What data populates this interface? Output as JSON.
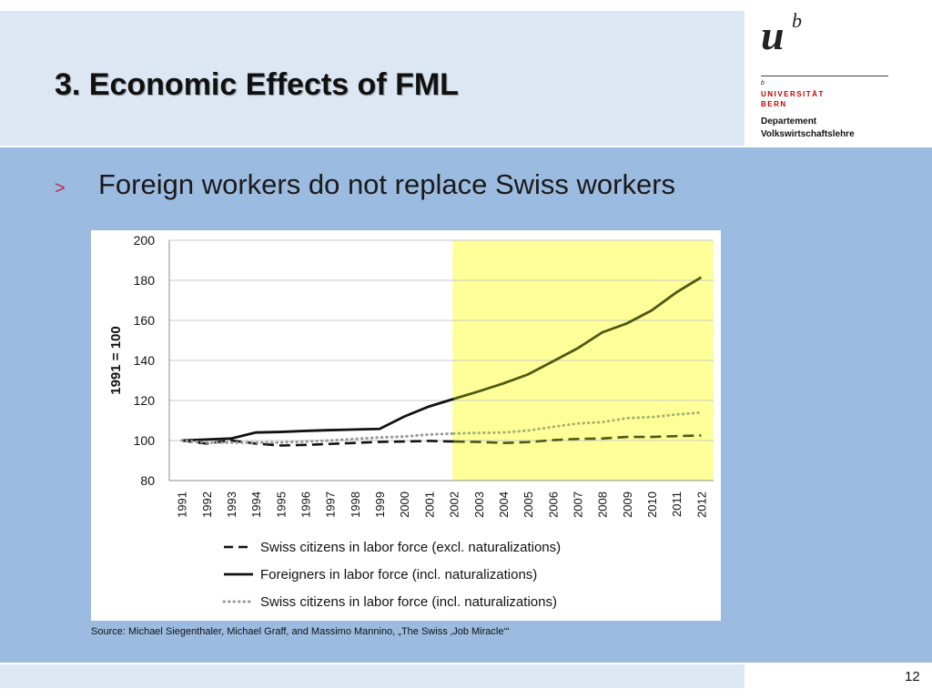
{
  "slide": {
    "title": "3. Economic Effects of FML",
    "bullet_marker": ">",
    "bullet_text": "Foreign workers do not replace Swiss workers",
    "source": "Source: Michael Siegenthaler, Michael Graff, and Massimo Mannino, „The Swiss ‚Job Miracle‘“",
    "page_number": "12"
  },
  "logo": {
    "mark_u": "u",
    "mark_b": "b",
    "small_b": "b",
    "line1": "UNIVERSITÄT",
    "line2": "BERN",
    "dept1": "Departement",
    "dept2": "Volkswirtschaftslehre"
  },
  "colors": {
    "header_bg": "#dce7f3",
    "content_bg": "#9cbbe0",
    "highlight": "#ffff99",
    "foreign_line": "#111111",
    "foreign_line_highlight": "#4d5a12",
    "swiss_excl_line": "#111111",
    "swiss_excl_line_highlight": "#4d5a12",
    "swiss_incl_line": "#999999",
    "swiss_incl_line_highlight": "#a6b56e",
    "bullet": "#c0234a"
  },
  "chart_data": {
    "type": "line",
    "title": "",
    "xlabel": "",
    "ylabel": "1991 = 100",
    "ylim": [
      80,
      200
    ],
    "yticks": [
      80,
      100,
      120,
      140,
      160,
      180,
      200
    ],
    "grid": true,
    "legend_position": "bottom",
    "highlight_range": [
      2002,
      2012
    ],
    "categories": [
      1991,
      1992,
      1993,
      1994,
      1995,
      1996,
      1997,
      1998,
      1999,
      2000,
      2001,
      2002,
      2003,
      2004,
      2005,
      2006,
      2007,
      2008,
      2009,
      2010,
      2011,
      2012
    ],
    "series": [
      {
        "name": "Swiss citizens in labor force (excl. naturalizations)",
        "style": "dashed",
        "values": [
          100,
          98.5,
          100,
          98.5,
          97.5,
          97.8,
          98.3,
          98.8,
          99.3,
          99.5,
          99.8,
          99.5,
          99.3,
          98.8,
          99.2,
          100.2,
          100.8,
          101.0,
          101.8,
          101.8,
          102.2,
          102.5
        ]
      },
      {
        "name": "Foreigners in labor force (incl. naturalizations)",
        "style": "solid",
        "values": [
          100,
          100.5,
          101,
          104,
          104.3,
          104.8,
          105.2,
          105.5,
          105.8,
          112,
          117,
          120.8,
          124.5,
          128.5,
          133,
          139.5,
          146,
          154,
          158.5,
          165,
          174,
          181.5
        ]
      },
      {
        "name": "Swiss citizens in labor force (incl. naturalizations)",
        "style": "dotted",
        "values": [
          100,
          99,
          99,
          99,
          99,
          99.5,
          100,
          100.8,
          101.5,
          102,
          103,
          103.5,
          103.8,
          104,
          105,
          106.8,
          108.5,
          109.2,
          111.2,
          111.7,
          113,
          114
        ]
      }
    ]
  }
}
